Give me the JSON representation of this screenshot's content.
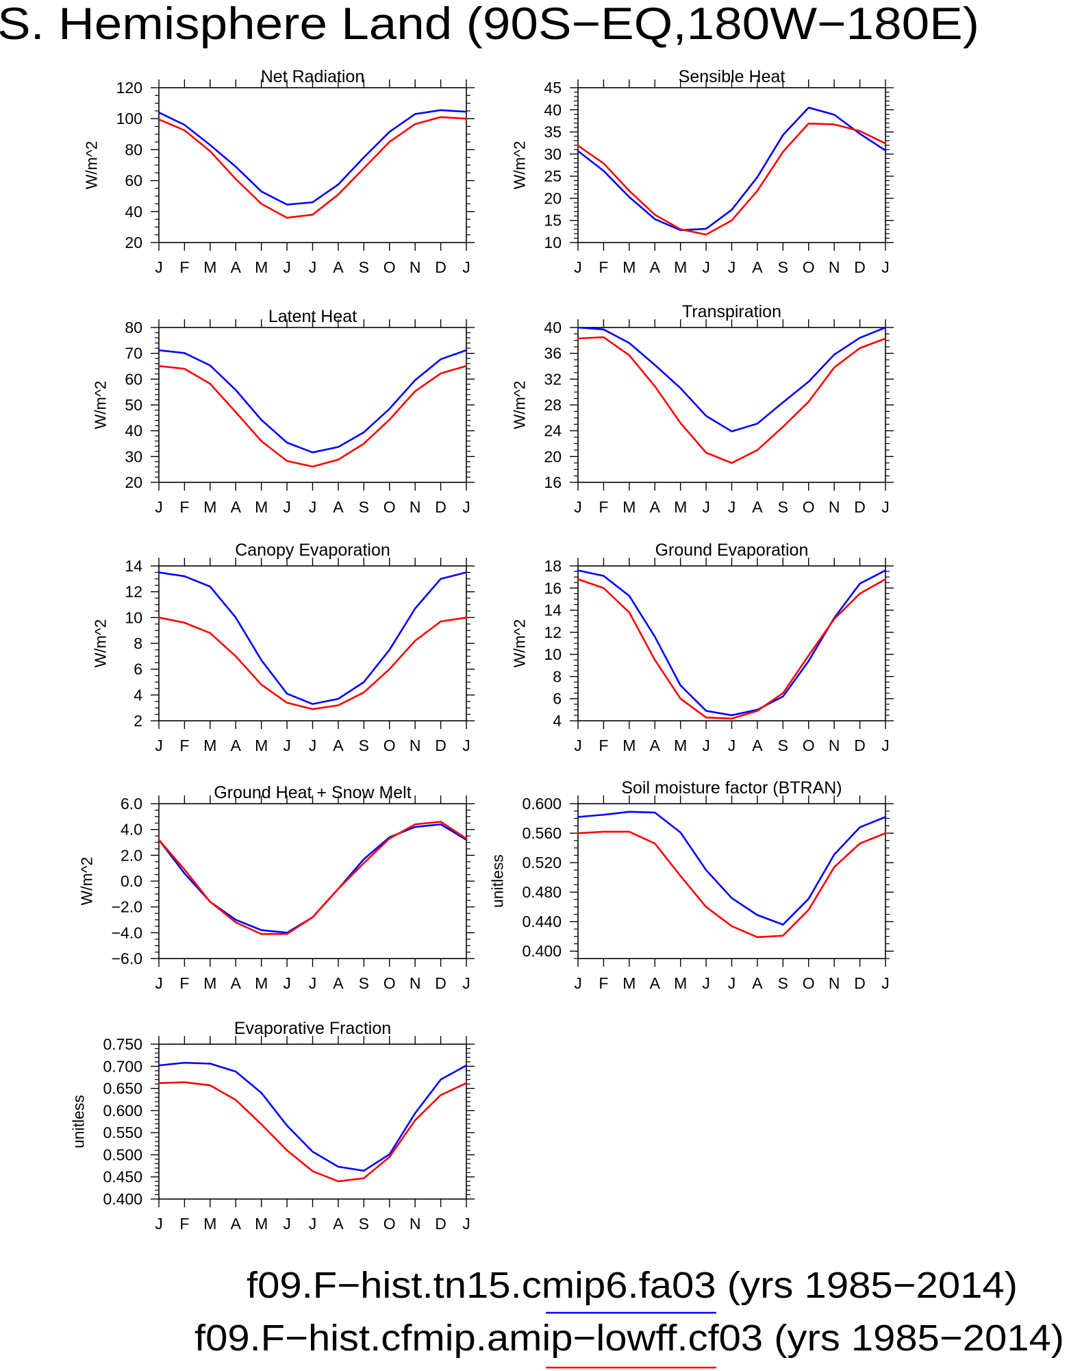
{
  "title": "S. Hemisphere Land (90S−EQ,180W−180E)",
  "legend": {
    "placement": "bottom",
    "entries": [
      {
        "label": "f09.F−hist.tn15.cmip6.fa03 (yrs 1985−2014)",
        "color": "#0000ff"
      },
      {
        "label": "f09.F−hist.cfmip.amip−lowff.cf03 (yrs 1985−2014)",
        "color": "#ff0000"
      }
    ]
  },
  "chart_data": [
    {
      "type": "line",
      "title": "Net Radiation",
      "ylabel": "W/m^2",
      "grid": false,
      "categories": [
        "J",
        "F",
        "M",
        "A",
        "M",
        "J",
        "J",
        "A",
        "S",
        "O",
        "N",
        "D",
        "J"
      ],
      "ylim": [
        20,
        120
      ],
      "yticks": [
        20,
        40,
        60,
        80,
        100,
        120
      ],
      "ytick_labels": [
        "20",
        "40",
        "60",
        "80",
        "100",
        "120"
      ],
      "series": [
        {
          "color": "#0000ff",
          "values": [
            104,
            96,
            83,
            69,
            53,
            44.5,
            46,
            57.5,
            75,
            91.5,
            103,
            105.5,
            104.5
          ]
        },
        {
          "color": "#ff0000",
          "values": [
            99.5,
            92.5,
            79,
            61,
            45,
            36,
            38,
            51,
            68,
            85,
            96.5,
            101,
            100
          ]
        }
      ]
    },
    {
      "type": "line",
      "title": "Sensible Heat",
      "ylabel": "W/m^2",
      "grid": false,
      "categories": [
        "J",
        "F",
        "M",
        "A",
        "M",
        "J",
        "J",
        "A",
        "S",
        "O",
        "N",
        "D",
        "J"
      ],
      "ylim": [
        10,
        45
      ],
      "yticks": [
        10,
        15,
        20,
        25,
        30,
        35,
        40,
        45
      ],
      "ytick_labels": [
        "10",
        "15",
        "20",
        "25",
        "30",
        "35",
        "40",
        "45"
      ],
      "series": [
        {
          "color": "#0000ff",
          "values": [
            30.7,
            26.2,
            20.3,
            15.3,
            12.8,
            13.1,
            17.4,
            24.8,
            34.3,
            40.5,
            38.9,
            34.6,
            30.8
          ]
        },
        {
          "color": "#ff0000",
          "values": [
            31.9,
            27.9,
            21.7,
            16.3,
            13.0,
            11.8,
            15.0,
            21.7,
            30.5,
            36.9,
            36.7,
            35.2,
            32.4
          ]
        }
      ]
    },
    {
      "type": "line",
      "title": "Latent Heat",
      "ylabel": "W/m^2",
      "grid": false,
      "categories": [
        "J",
        "F",
        "M",
        "A",
        "M",
        "J",
        "J",
        "A",
        "S",
        "O",
        "N",
        "D",
        "J"
      ],
      "ylim": [
        20,
        80
      ],
      "yticks": [
        20,
        30,
        40,
        50,
        60,
        70,
        80
      ],
      "ytick_labels": [
        "20",
        "30",
        "40",
        "50",
        "60",
        "70",
        "80"
      ],
      "series": [
        {
          "color": "#0000ff",
          "values": [
            71.2,
            70.1,
            65.3,
            55.8,
            44.2,
            35.4,
            31.6,
            33.7,
            39.4,
            48.5,
            59.6,
            67.7,
            71.2
          ]
        },
        {
          "color": "#ff0000",
          "values": [
            65.1,
            64.0,
            58.2,
            47.2,
            36.0,
            28.3,
            26.1,
            28.8,
            35.0,
            44.3,
            55.3,
            62.2,
            65.1
          ]
        }
      ]
    },
    {
      "type": "line",
      "title": "Transpiration",
      "ylabel": "W/m^2",
      "grid": false,
      "categories": [
        "J",
        "F",
        "M",
        "A",
        "M",
        "J",
        "J",
        "A",
        "S",
        "O",
        "N",
        "D",
        "J"
      ],
      "ylim": [
        16,
        40
      ],
      "yticks": [
        16,
        20,
        24,
        28,
        32,
        36,
        40
      ],
      "ytick_labels": [
        "16",
        "20",
        "24",
        "28",
        "32",
        "36",
        "40"
      ],
      "series": [
        {
          "color": "#0000ff",
          "values": [
            40.0,
            39.7,
            37.6,
            34.2,
            30.6,
            26.3,
            23.9,
            25.1,
            28.4,
            31.6,
            35.8,
            38.4,
            40.0
          ]
        },
        {
          "color": "#ff0000",
          "values": [
            38.3,
            38.5,
            35.7,
            30.9,
            25.2,
            20.6,
            19.0,
            21.0,
            24.6,
            28.5,
            33.8,
            36.8,
            38.3
          ]
        }
      ]
    },
    {
      "type": "line",
      "title": "Canopy Evaporation",
      "ylabel": "W/m^2",
      "grid": false,
      "categories": [
        "J",
        "F",
        "M",
        "A",
        "M",
        "J",
        "J",
        "A",
        "S",
        "O",
        "N",
        "D",
        "J"
      ],
      "ylim": [
        2,
        14
      ],
      "yticks": [
        2,
        4,
        6,
        8,
        10,
        12,
        14
      ],
      "ytick_labels": [
        "2",
        "4",
        "6",
        "8",
        "10",
        "12",
        "14"
      ],
      "series": [
        {
          "color": "#0000ff",
          "values": [
            13.5,
            13.2,
            12.4,
            10.0,
            6.7,
            4.1,
            3.3,
            3.7,
            5.0,
            7.5,
            10.7,
            13.0,
            13.5
          ]
        },
        {
          "color": "#ff0000",
          "values": [
            10.0,
            9.6,
            8.8,
            7.0,
            4.8,
            3.4,
            2.9,
            3.2,
            4.2,
            6.0,
            8.2,
            9.7,
            10.0
          ]
        }
      ]
    },
    {
      "type": "line",
      "title": "Ground Evaporation",
      "ylabel": "W/m^2",
      "grid": false,
      "categories": [
        "J",
        "F",
        "M",
        "A",
        "M",
        "J",
        "J",
        "A",
        "S",
        "O",
        "N",
        "D",
        "J"
      ],
      "ylim": [
        4,
        18
      ],
      "yticks": [
        4,
        6,
        8,
        10,
        12,
        14,
        16,
        18
      ],
      "ytick_labels": [
        "4",
        "6",
        "8",
        "10",
        "12",
        "14",
        "16",
        "18"
      ],
      "series": [
        {
          "color": "#0000ff",
          "values": [
            17.6,
            17.1,
            15.3,
            11.6,
            7.2,
            4.9,
            4.5,
            5.0,
            6.2,
            9.4,
            13.3,
            16.4,
            17.6
          ]
        },
        {
          "color": "#ff0000",
          "values": [
            16.8,
            16.0,
            13.8,
            9.5,
            6.0,
            4.3,
            4.2,
            4.9,
            6.5,
            9.9,
            13.2,
            15.5,
            16.8
          ]
        }
      ]
    },
    {
      "type": "line",
      "title": "Ground Heat + Snow Melt",
      "ylabel": "W/m^2",
      "grid": false,
      "categories": [
        "J",
        "F",
        "M",
        "A",
        "M",
        "J",
        "J",
        "A",
        "S",
        "O",
        "N",
        "D",
        "J"
      ],
      "ylim": [
        -6,
        6
      ],
      "yticks": [
        -6,
        -4,
        -2,
        0,
        2,
        4,
        6
      ],
      "ytick_labels": [
        "−6.0",
        "−4.0",
        "−2.0",
        "0.0",
        "2.0",
        "4.0",
        "6.0"
      ],
      "series": [
        {
          "color": "#0000ff",
          "values": [
            3.2,
            0.6,
            -1.6,
            -3.0,
            -3.8,
            -4.0,
            -2.8,
            -0.6,
            1.7,
            3.4,
            4.2,
            4.4,
            3.2
          ]
        },
        {
          "color": "#ff0000",
          "values": [
            3.2,
            0.9,
            -1.6,
            -3.2,
            -4.1,
            -4.1,
            -2.8,
            -0.6,
            1.4,
            3.3,
            4.4,
            4.6,
            3.3
          ]
        }
      ]
    },
    {
      "type": "line",
      "title": "Soil moisture factor (BTRAN)",
      "ylabel": "unitless",
      "grid": false,
      "categories": [
        "J",
        "F",
        "M",
        "A",
        "M",
        "J",
        "J",
        "A",
        "S",
        "O",
        "N",
        "D",
        "J"
      ],
      "ylim": [
        0.39,
        0.6
      ],
      "yticks": [
        0.4,
        0.44,
        0.48,
        0.52,
        0.56,
        0.6
      ],
      "ytick_labels": [
        "0.400",
        "0.440",
        "0.480",
        "0.520",
        "0.560",
        "0.600"
      ],
      "series": [
        {
          "color": "#0000ff",
          "values": [
            0.582,
            0.585,
            0.589,
            0.588,
            0.561,
            0.51,
            0.472,
            0.449,
            0.436,
            0.471,
            0.531,
            0.568,
            0.582
          ]
        },
        {
          "color": "#ff0000",
          "values": [
            0.56,
            0.562,
            0.562,
            0.546,
            0.502,
            0.46,
            0.434,
            0.419,
            0.421,
            0.456,
            0.514,
            0.546,
            0.56
          ]
        }
      ]
    },
    {
      "type": "line",
      "title": "Evaporative Fraction",
      "ylabel": "unitless",
      "grid": false,
      "categories": [
        "J",
        "F",
        "M",
        "A",
        "M",
        "J",
        "J",
        "A",
        "S",
        "O",
        "N",
        "D",
        "J"
      ],
      "ylim": [
        0.4,
        0.75
      ],
      "yticks": [
        0.4,
        0.45,
        0.5,
        0.55,
        0.6,
        0.65,
        0.7,
        0.75
      ],
      "ytick_labels": [
        "0.400",
        "0.450",
        "0.500",
        "0.550",
        "0.600",
        "0.650",
        "0.700",
        "0.750"
      ],
      "series": [
        {
          "color": "#0000ff",
          "values": [
            0.702,
            0.708,
            0.706,
            0.688,
            0.64,
            0.566,
            0.507,
            0.473,
            0.464,
            0.501,
            0.594,
            0.67,
            0.702
          ]
        },
        {
          "color": "#ff0000",
          "values": [
            0.662,
            0.664,
            0.657,
            0.624,
            0.569,
            0.51,
            0.463,
            0.44,
            0.447,
            0.495,
            0.578,
            0.635,
            0.662
          ]
        }
      ]
    }
  ]
}
